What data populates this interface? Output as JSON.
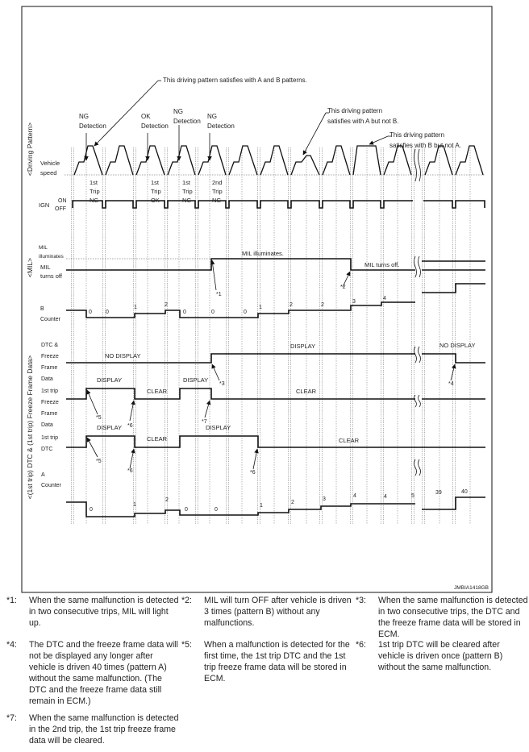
{
  "annotations": {
    "ab_pattern": "This driving pattern satisfies with A and B patterns.",
    "a_not_b": [
      "This driving pattern",
      "satisfies with A but not B."
    ],
    "b_not_a": [
      "This driving pattern",
      "satisfies with B but not A."
    ]
  },
  "detections": [
    {
      "line1": "NG",
      "line2": "Detection"
    },
    {
      "line1": "OK",
      "line2": "Detection"
    },
    {
      "line1": "NG",
      "line2": "Detection"
    },
    {
      "line1": "NG",
      "line2": "Detection"
    }
  ],
  "trip_results": [
    [
      "1st",
      "Trip",
      "NG"
    ],
    [
      "1st",
      "Trip",
      "OK"
    ],
    [
      "1st",
      "Trip",
      "NG"
    ],
    [
      "2nd",
      "Trip",
      "NG"
    ]
  ],
  "section_labels": {
    "driving_pattern": "<Driving Pattern>",
    "mil": "<MIL>",
    "dtc": "<(1st trip) DTC & (1st trip) Freeze Frame Data>"
  },
  "row_labels": {
    "vehicle_speed": [
      "Vehicle",
      "speed"
    ],
    "ign": "IGN",
    "ign_on": "ON",
    "ign_off": "OFF",
    "mil_illuminates": [
      "MIL",
      "illuminates"
    ],
    "mil_turns_off": [
      "MIL",
      "turns off"
    ],
    "b_counter": [
      "B",
      "Counter"
    ],
    "dtc_ffd": [
      "DTC &",
      "Freeze",
      "Frame",
      "Data"
    ],
    "first_trip_ffd": [
      "1st trip",
      "Freeze",
      "Frame",
      "Data"
    ],
    "first_trip_dtc": [
      "1st trip",
      "DTC"
    ],
    "a_counter": [
      "A",
      "Counter"
    ]
  },
  "signal_labels": {
    "mil_on": "MIL illuminates.",
    "mil_off": "MIL turns off.",
    "dtc_no_display_1": "NO DISPLAY",
    "dtc_display": "DISPLAY",
    "dtc_no_display_2": "NO DISPLAY",
    "ffd_display_1": "DISPLAY",
    "ffd_clear_1": "CLEAR",
    "ffd_display_2": "DISPLAY",
    "ffd_clear_2": "CLEAR",
    "fdtc_display_1": "DISPLAY",
    "fdtc_clear_1": "CLEAR",
    "fdtc_display_2": "DISPLAY",
    "fdtc_clear_2": "CLEAR"
  },
  "b_counter_values": [
    "0",
    "0",
    "1",
    "2",
    "0",
    "0",
    "0",
    "1",
    "2",
    "2",
    "3",
    "4"
  ],
  "a_counter_values": [
    "0",
    "1",
    "2",
    "0",
    "0",
    "1",
    "2",
    "3",
    "4",
    "4",
    "5",
    "39",
    "40"
  ],
  "markers": [
    "*1",
    "*2",
    "*3",
    "*4",
    "*5",
    "*6",
    "*7",
    "*5",
    "*6",
    "*6"
  ],
  "figure_code": "JMBIA1418GB",
  "notes": [
    {
      "num": "*1:",
      "text": "When the same malfunction is detected in two consecutive trips, MIL will light up."
    },
    {
      "num": "*2:",
      "text": "MIL will turn OFF after vehicle is driven 3 times (pattern B) without any malfunctions."
    },
    {
      "num": "*3:",
      "text": "When the same malfunction is detected in two consecutive trips, the DTC and the freeze frame data will be stored in ECM."
    },
    {
      "num": "*4:",
      "text": "The DTC and the freeze frame data will not be displayed any longer after vehicle is driven 40 times (pattern A) without the same malfunction. (The DTC and the freeze frame data still remain in ECM.)"
    },
    {
      "num": "*5:",
      "text": "When a malfunction is detected for the first time, the 1st trip DTC and the 1st trip freeze frame data will be stored in ECM."
    },
    {
      "num": "*6:",
      "text": "1st trip DTC will be cleared after vehicle is driven once (pattern B) without the same malfunction."
    },
    {
      "num": "*7:",
      "text": "When the same malfunction is detected in the 2nd trip, the 1st trip freeze frame data will be cleared."
    }
  ]
}
